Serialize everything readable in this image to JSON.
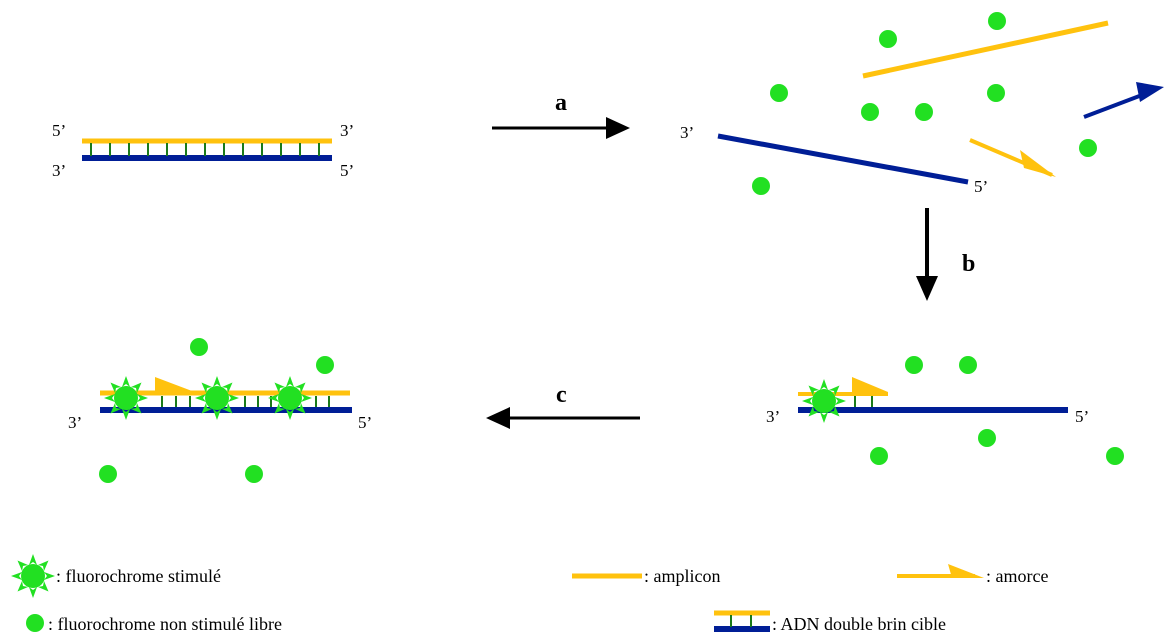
{
  "strand_ends": {
    "five_prime": "5’",
    "three_prime": "3’"
  },
  "steps": {
    "a": "a",
    "b": "b",
    "c": "c"
  },
  "legend": {
    "stimulated": ": fluorochrome stimulé",
    "free": ": fluorochrome non stimulé libre",
    "amplicon": ": amplicon",
    "primer": ": amorce",
    "target": ": ADN double brin cible"
  },
  "colors": {
    "amplicon": "#FFC20E",
    "target": "#001E96",
    "fluorochrome": "#22E022",
    "bond": "#1A7A1A",
    "arrow": "#000000"
  }
}
